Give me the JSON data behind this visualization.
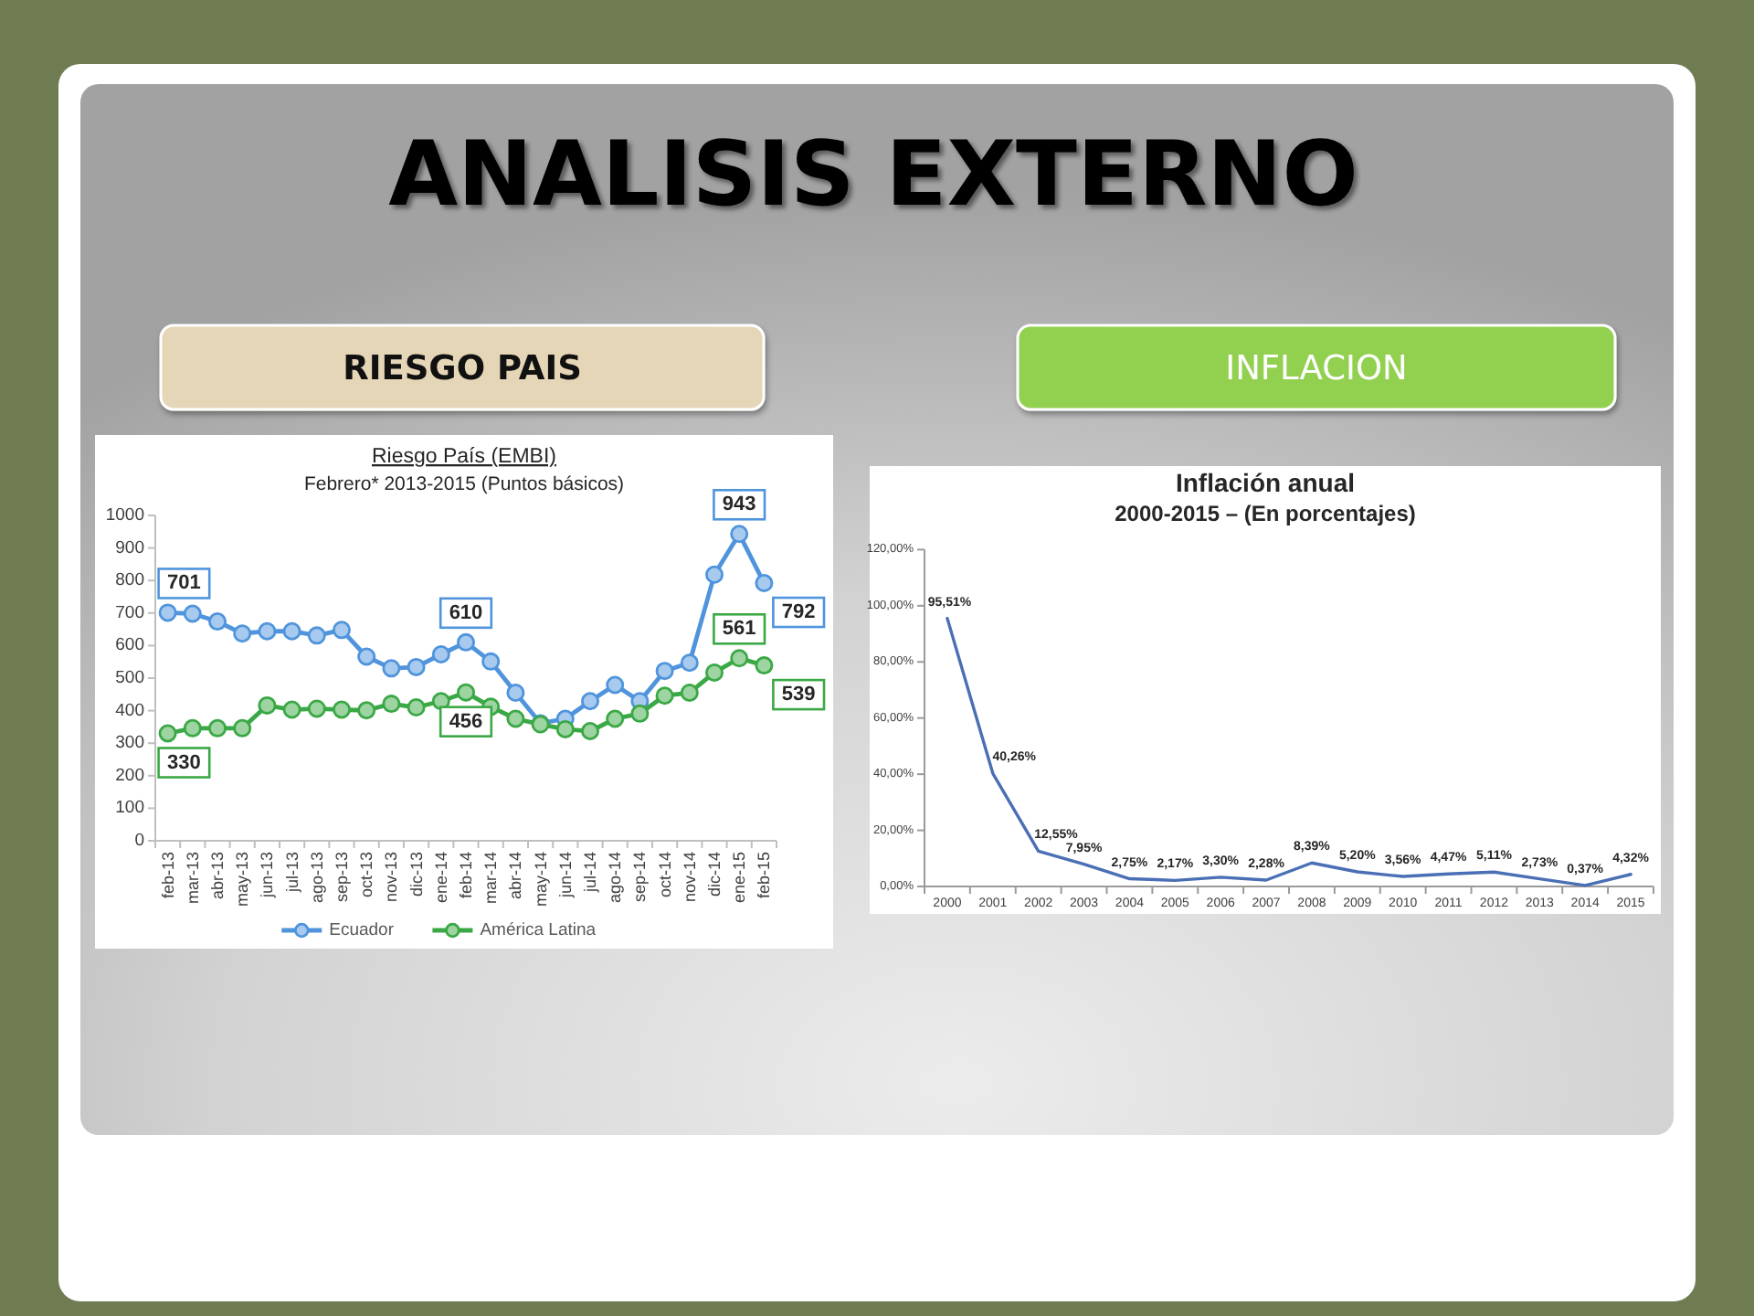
{
  "chart_data": [
    {
      "type": "other",
      "title": "ANALISIS EXTERNO"
    },
    {
      "type": "line",
      "title": "Riesgo País (EMBI)",
      "subtitle": "Febrero* 2013-2015 (Puntos básicos)",
      "annotations": [
        "RIESGO PAIS"
      ],
      "categories": [
        "feb-13",
        "mar-13",
        "abr-13",
        "may-13",
        "jun-13",
        "jul-13",
        "ago-13",
        "sep-13",
        "oct-13",
        "nov-13",
        "dic-13",
        "ene-14",
        "feb-14",
        "mar-14",
        "abr-14",
        "may-14",
        "jun-14",
        "jul-14",
        "ago-14",
        "sep-14",
        "oct-14",
        "nov-14",
        "dic-14",
        "ene-15",
        "feb-15"
      ],
      "series": [
        {
          "name": "Ecuador",
          "color": "#4f94dc",
          "values": [
            701,
            698,
            674,
            637,
            644,
            644,
            631,
            648,
            566,
            530,
            534,
            573,
            610,
            551,
            455,
            361,
            375,
            429,
            479,
            429,
            522,
            547,
            818,
            943,
            792
          ],
          "value_labels": [
            "701",
            null,
            null,
            null,
            null,
            null,
            null,
            null,
            null,
            null,
            null,
            null,
            "610",
            null,
            null,
            null,
            null,
            null,
            null,
            null,
            null,
            null,
            null,
            "943",
            "792"
          ]
        },
        {
          "name": "América Latina",
          "color": "#3aa845",
          "values": [
            330,
            346,
            346,
            346,
            416,
            403,
            406,
            403,
            401,
            421,
            410,
            429,
            456,
            412,
            375,
            358,
            343,
            337,
            375,
            391,
            446,
            455,
            517,
            561,
            539
          ],
          "value_labels": [
            "330",
            null,
            null,
            null,
            null,
            null,
            null,
            null,
            null,
            null,
            null,
            null,
            "456",
            null,
            null,
            null,
            null,
            null,
            null,
            null,
            null,
            null,
            null,
            "561",
            "539"
          ]
        }
      ],
      "ylim": [
        0,
        1000
      ],
      "yticks": [
        0,
        100,
        200,
        300,
        400,
        500,
        600,
        700,
        800,
        900,
        1000
      ],
      "marker": "circle",
      "legend": "bottom"
    },
    {
      "type": "line",
      "title": "Inflación anual",
      "subtitle": "2000-2015 – (En porcentajes)",
      "annotations": [
        "INFLACION"
      ],
      "categories": [
        "2000",
        "2001",
        "2002",
        "2003",
        "2004",
        "2005",
        "2006",
        "2007",
        "2008",
        "2009",
        "2010",
        "2011",
        "2012",
        "2013",
        "2014",
        "2015"
      ],
      "series": [
        {
          "color": "#4a6fb5",
          "values": [
            95.51,
            40.26,
            12.55,
            7.95,
            2.75,
            2.17,
            3.3,
            2.28,
            8.39,
            5.2,
            3.56,
            4.47,
            5.11,
            2.73,
            0.37,
            4.32
          ],
          "value_labels": [
            "95,51%",
            "40,26%",
            "12,55%",
            "7,95%",
            "2,75%",
            "2,17%",
            "3,30%",
            "2,28%",
            "8,39%",
            "5,20%",
            "3,56%",
            "4,47%",
            "5,11%",
            "2,73%",
            "0,37%",
            "4,32%"
          ]
        }
      ],
      "ylim": [
        0,
        120
      ],
      "yticks": [
        {
          "value": 0,
          "label": "0,00%"
        },
        {
          "value": 20,
          "label": "20,00%"
        },
        {
          "value": 40,
          "label": "40,00%"
        },
        {
          "value": 60,
          "label": "60,00%"
        },
        {
          "value": 80,
          "label": "80,00%"
        },
        {
          "value": 100,
          "label": "100,00%"
        },
        {
          "value": 120,
          "label": "120,00%"
        }
      ]
    }
  ]
}
